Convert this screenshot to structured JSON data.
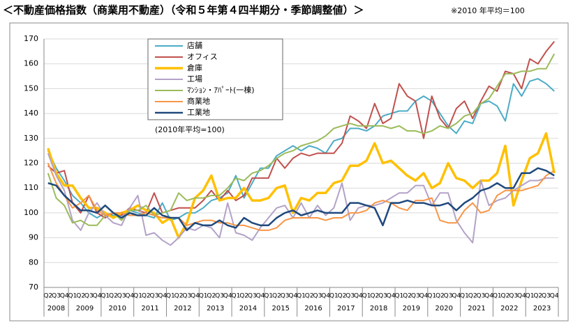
{
  "chart_data": {
    "type": "line",
    "title": "＜不動産価格指数（商業用不動産）（令和５年第４四半期分・季節調整値）＞",
    "note": "※2010 年平均＝100",
    "annotation": "(2010年平均=100)",
    "categories": [
      "Q2",
      "Q3",
      "Q4",
      "Q1",
      "Q2",
      "Q3",
      "Q4",
      "Q1",
      "Q2",
      "Q3",
      "Q4",
      "Q1",
      "Q2",
      "Q3",
      "Q4",
      "Q1",
      "Q2",
      "Q3",
      "Q4",
      "Q1",
      "Q2",
      "Q3",
      "Q4",
      "Q1",
      "Q2",
      "Q3",
      "Q4",
      "Q1",
      "Q2",
      "Q3",
      "Q4",
      "Q1",
      "Q2",
      "Q3",
      "Q4",
      "Q1",
      "Q2",
      "Q3",
      "Q4",
      "Q1",
      "Q2",
      "Q3",
      "Q4",
      "Q1",
      "Q2",
      "Q3",
      "Q4",
      "Q1",
      "Q2",
      "Q3",
      "Q4",
      "Q1",
      "Q2",
      "Q3",
      "Q4",
      "Q1",
      "Q2",
      "Q3",
      "Q4",
      "Q1",
      "Q2",
      "Q3",
      "Q4"
    ],
    "x_groups": [
      "2008",
      "2009",
      "2010",
      "2011",
      "2012",
      "2013",
      "2014",
      "2015",
      "2016",
      "2017",
      "2018",
      "2019",
      "2020",
      "2021",
      "2022",
      "2023"
    ],
    "ylim": [
      70,
      170
    ],
    "yticks": [
      70,
      80,
      90,
      100,
      110,
      120,
      130,
      140,
      150,
      160,
      170
    ],
    "grid": true,
    "series": [
      {
        "name": "店舗",
        "color": "#4bacc6",
        "width": 2,
        "values": [
          125,
          118,
          113,
          107,
          104,
          100,
          98,
          100,
          99,
          98,
          101,
          100,
          99,
          98,
          104,
          97,
          98,
          100,
          100,
          102,
          105,
          106,
          108,
          115,
          106,
          112,
          118,
          118,
          123,
          125,
          127,
          125,
          127,
          126,
          124,
          129,
          130,
          134,
          134,
          133,
          135,
          139,
          140,
          141,
          141,
          145,
          147,
          145,
          140,
          135,
          132,
          137,
          136,
          144,
          145,
          143,
          137,
          152,
          147,
          153,
          154,
          152,
          149
        ]
      },
      {
        "name": "オフィス",
        "color": "#c0504d",
        "width": 2,
        "values": [
          119,
          116,
          117,
          104,
          100,
          107,
          100,
          98,
          100,
          99,
          102,
          101,
          100,
          108,
          100,
          101,
          102,
          102,
          102,
          105,
          109,
          105,
          109,
          105,
          107,
          114,
          114,
          114,
          122,
          118,
          122,
          124,
          123,
          124,
          124,
          124,
          128,
          139,
          137,
          134,
          144,
          136,
          138,
          152,
          147,
          145,
          130,
          147,
          138,
          134,
          142,
          145,
          138,
          145,
          151,
          149,
          157,
          156,
          150,
          162,
          160,
          165,
          169
        ]
      },
      {
        "name": "倉庫",
        "color": "#ffc000",
        "width": 3.5,
        "values": [
          126,
          116,
          111,
          111,
          106,
          102,
          102,
          100,
          98,
          100,
          101,
          103,
          101,
          100,
          96,
          98,
          90,
          96,
          106,
          109,
          115,
          105,
          106,
          106,
          110,
          105,
          105,
          106,
          110,
          111,
          100,
          106,
          105,
          108,
          108,
          112,
          113,
          119,
          119,
          121,
          128,
          120,
          121,
          118,
          115,
          113,
          116,
          110,
          112,
          120,
          114,
          113,
          110,
          113,
          113,
          116,
          127,
          103,
          113,
          122,
          124,
          132,
          116
        ]
      },
      {
        "name": "工場",
        "color": "#b3a2c7",
        "width": 2,
        "values": [
          124,
          115,
          109,
          97,
          93,
          100,
          104,
          99,
          96,
          95,
          102,
          107,
          91,
          92,
          89,
          87,
          90,
          94,
          93,
          95,
          94,
          90,
          104,
          92,
          91,
          89,
          94,
          98,
          102,
          103,
          98,
          104,
          98,
          103,
          99,
          102,
          112,
          97,
          102,
          103,
          103,
          104,
          106,
          108,
          108,
          111,
          111,
          103,
          108,
          108,
          97,
          92,
          88,
          113,
          103,
          105,
          106,
          109,
          111,
          113,
          113,
          114,
          114
        ]
      },
      {
        "name": "ﾏﾝｼｮﾝ・ｱﾊﾟｰﾄ(一棟)",
        "color": "#9bbb59",
        "width": 2,
        "values": [
          116,
          106,
          103,
          96,
          97,
          95,
          95,
          99,
          100,
          97,
          101,
          101,
          103,
          99,
          100,
          101,
          108,
          105,
          106,
          106,
          107,
          107,
          110,
          114,
          113,
          116,
          117,
          119,
          122,
          124,
          125,
          127,
          128,
          129,
          131,
          134,
          135,
          136,
          135,
          135,
          135,
          135,
          134,
          135,
          133,
          133,
          132,
          133,
          135,
          134,
          136,
          139,
          140,
          144,
          146,
          151,
          156,
          156,
          157,
          157,
          158,
          158,
          164
        ]
      },
      {
        "name": "商業地",
        "color": "#f79646",
        "width": 2,
        "values": [
          120,
          112,
          107,
          102,
          104,
          107,
          101,
          99,
          100,
          100,
          99,
          99,
          100,
          99,
          98,
          98,
          98,
          95,
          96,
          97,
          97,
          96,
          96,
          95,
          95,
          94,
          93,
          93,
          94,
          97,
          98,
          98,
          98,
          98,
          97,
          98,
          98,
          100,
          100,
          101,
          104,
          105,
          104,
          102,
          101,
          105,
          105,
          106,
          97,
          96,
          96,
          101,
          104,
          100,
          101,
          107,
          109,
          109,
          109,
          110,
          111,
          115,
          117
        ]
      },
      {
        "name": "工業地",
        "color": "#1f497d",
        "width": 2.5,
        "values": [
          112,
          111,
          107,
          104,
          101,
          101,
          100,
          103,
          100,
          98,
          100,
          99,
          99,
          102,
          99,
          98,
          98,
          93,
          96,
          95,
          95,
          97,
          95,
          94,
          98,
          96,
          95,
          95,
          98,
          100,
          101,
          99,
          100,
          101,
          100,
          100,
          100,
          104,
          104,
          103,
          102,
          95,
          104,
          104,
          105,
          104,
          104,
          103,
          103,
          104,
          101,
          104,
          106,
          109,
          110,
          112,
          110,
          110,
          116,
          116,
          118,
          117,
          115
        ]
      }
    ]
  }
}
